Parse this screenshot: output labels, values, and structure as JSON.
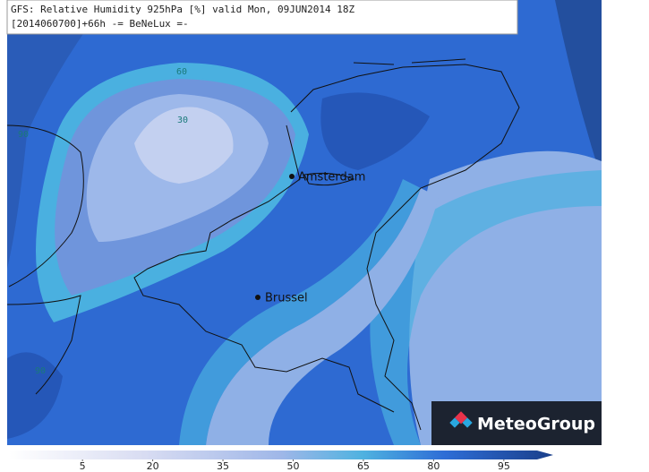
{
  "header": {
    "line1": "GFS: Relative Humidity 925hPa [%] valid Mon, 09JUN2014 18Z",
    "line2": "[2014060700]+66h  -= BeNeLux =-"
  },
  "contour_labels": [
    "60",
    "30",
    "90",
    "90"
  ],
  "cities": [
    "Amsterdam",
    "Brussel"
  ],
  "logo": "MeteoGroup",
  "colorbar": {
    "lim": [
      0,
      100
    ],
    "ticks": [
      5,
      20,
      35,
      50,
      65,
      80,
      95
    ]
  }
}
